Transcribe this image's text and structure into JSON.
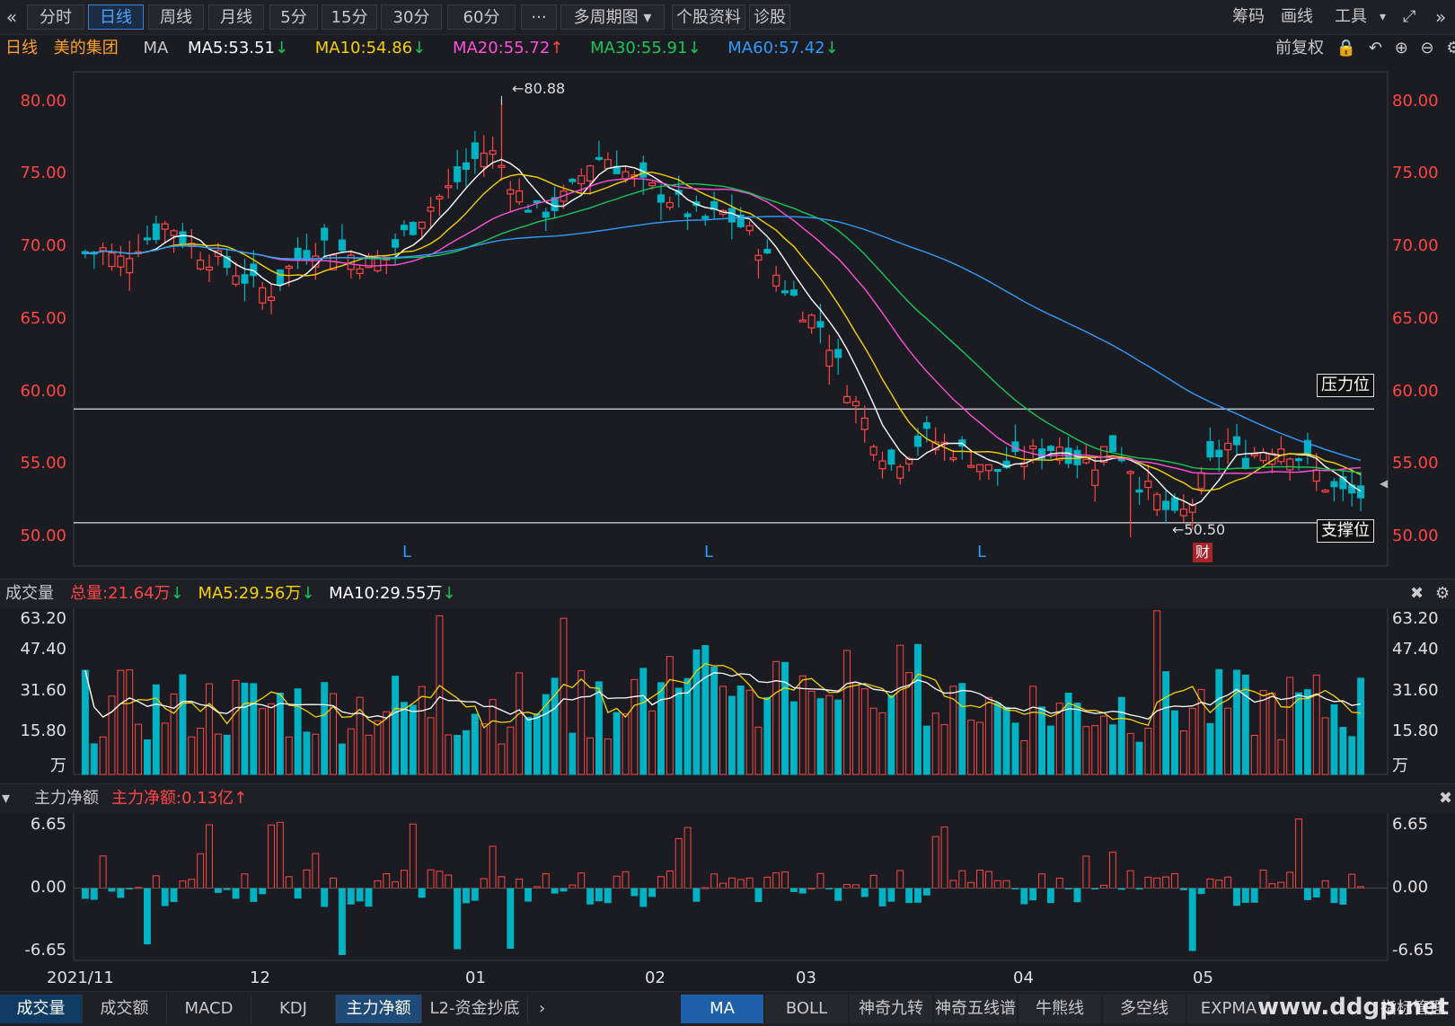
{
  "toolbar": {
    "back_icon": "double-chevron-left-icon",
    "tabs": [
      {
        "label": "分时",
        "active": false
      },
      {
        "label": "日线",
        "active": true
      },
      {
        "label": "周线",
        "active": false
      },
      {
        "label": "月线",
        "active": false
      },
      {
        "label": "5分",
        "active": false
      },
      {
        "label": "15分",
        "active": false
      },
      {
        "label": "30分",
        "active": false
      },
      {
        "label": "60分",
        "active": false
      },
      {
        "label": "···",
        "active": false
      },
      {
        "label": "多周期图 ▾",
        "active": false
      },
      {
        "label": "个股资料",
        "active": false
      },
      {
        "label": "诊股",
        "active": false
      }
    ],
    "right": {
      "chips": "筹码",
      "draw": "画线",
      "tools": "工具",
      "tools_caret": "▾",
      "expand_icon": "expand-icon",
      "collapse_icon": "double-chevron-right-icon"
    }
  },
  "legend": {
    "period": "日线",
    "name": "美的集团",
    "ma_label": "MA",
    "ma5": "MA5:53.51",
    "ma5_dir": "down",
    "ma10": "MA10:54.86",
    "ma10_dir": "down",
    "ma20": "MA20:55.72",
    "ma20_dir": "up",
    "ma30": "MA30:55.91",
    "ma30_dir": "down",
    "ma60": "MA60:57.42",
    "ma60_dir": "down",
    "adjust": "前复权",
    "colors": {
      "ma5": "#ffffff",
      "ma10": "#f5d100",
      "ma20": "#ff4fd8",
      "ma30": "#18c45a",
      "ma60": "#2e9bff",
      "up": "#ff4545",
      "down": "#18c45a",
      "teal": "#00b3c4"
    }
  },
  "price_axis": {
    "ticks": [
      "80.00",
      "75.00",
      "70.00",
      "65.00",
      "60.00",
      "55.00",
      "50.00"
    ]
  },
  "annotations": {
    "high": "←80.88",
    "low": "←50.50",
    "resistance": "压力位",
    "support": "支撑位",
    "earnings": "财",
    "l_marks": [
      "L",
      "L",
      "L"
    ]
  },
  "volume": {
    "title": "成交量",
    "total": "总量:21.64万",
    "total_dir": "down",
    "ma5": "MA5:29.56万",
    "ma5_dir": "down",
    "ma10": "MA10:29.55万",
    "ma10_dir": "down",
    "ticks": [
      "63.20",
      "47.40",
      "31.60",
      "15.80"
    ],
    "unit": "万",
    "close_icon": "close-icon",
    "settings_icon": "gear-icon"
  },
  "flow": {
    "title": "主力净额",
    "value": "主力净额:0.13亿",
    "value_dir": "up",
    "ticks": [
      "6.65",
      "0.00",
      "-6.65"
    ],
    "collapse_icon": "chevron-down-icon",
    "close_icon": "close-icon"
  },
  "dates": [
    "2021/11",
    "12",
    "01",
    "02",
    "03",
    "04",
    "05"
  ],
  "bottom_left": [
    "成交量",
    "成交额",
    "MACD",
    "KDJ",
    "主力净额",
    "L2-资金抄底"
  ],
  "bottom_right": [
    "MA",
    "BOLL",
    "神奇九转",
    "神奇五线谱",
    "牛熊线",
    "多空线",
    "EXPMA"
  ],
  "bottom_manage": "指标管理",
  "watermark": "www.ddgp.net",
  "chart_data": {
    "type": "candlestick",
    "symbol": "美的集团",
    "period": "daily",
    "x_range": [
      "2021/11",
      "05"
    ],
    "ylim": [
      50,
      81
    ],
    "price_high": 80.88,
    "price_low": 50.5,
    "resistance": 59.4,
    "support": 51.5,
    "ma_latest": {
      "MA5": 53.51,
      "MA10": 54.86,
      "MA20": 55.72,
      "MA30": 55.91,
      "MA60": 57.42
    },
    "close_path": [
      70.2,
      70.5,
      69.6,
      70.8,
      71.5,
      72.4,
      71.0,
      70.2,
      69.6,
      69.0,
      68.0,
      67.5,
      69.0,
      70.2,
      71.0,
      70.5,
      70.0,
      69.5,
      70.0,
      71.5,
      72.8,
      74.0,
      75.0,
      76.5,
      77.5,
      76.0,
      74.0,
      73.0,
      73.5,
      74.5,
      76.5,
      77.0,
      76.0,
      75.0,
      74.5,
      74.0,
      73.0,
      72.5,
      73.0,
      72.2,
      71.0,
      69.0,
      67.5,
      66.0,
      65.0,
      62.0,
      59.5,
      57.5,
      55.5,
      56.5,
      57.5,
      57.0,
      56.5,
      56.0,
      55.0,
      55.5,
      56.0,
      56.5,
      57.0,
      56.0,
      55.5,
      57.0,
      56.0,
      54.0,
      53.0,
      51.5,
      53.0,
      55.5,
      57.0,
      56.0,
      56.5,
      57.0,
      56.5,
      55.5,
      54.0,
      53.5,
      53.4
    ],
    "volume_series": {
      "unit": "万",
      "ylim": [
        0,
        63.2
      ]
    },
    "mainflow_series": {
      "unit": "亿",
      "ylim": [
        -6.65,
        6.65
      ],
      "latest": 0.13
    }
  }
}
